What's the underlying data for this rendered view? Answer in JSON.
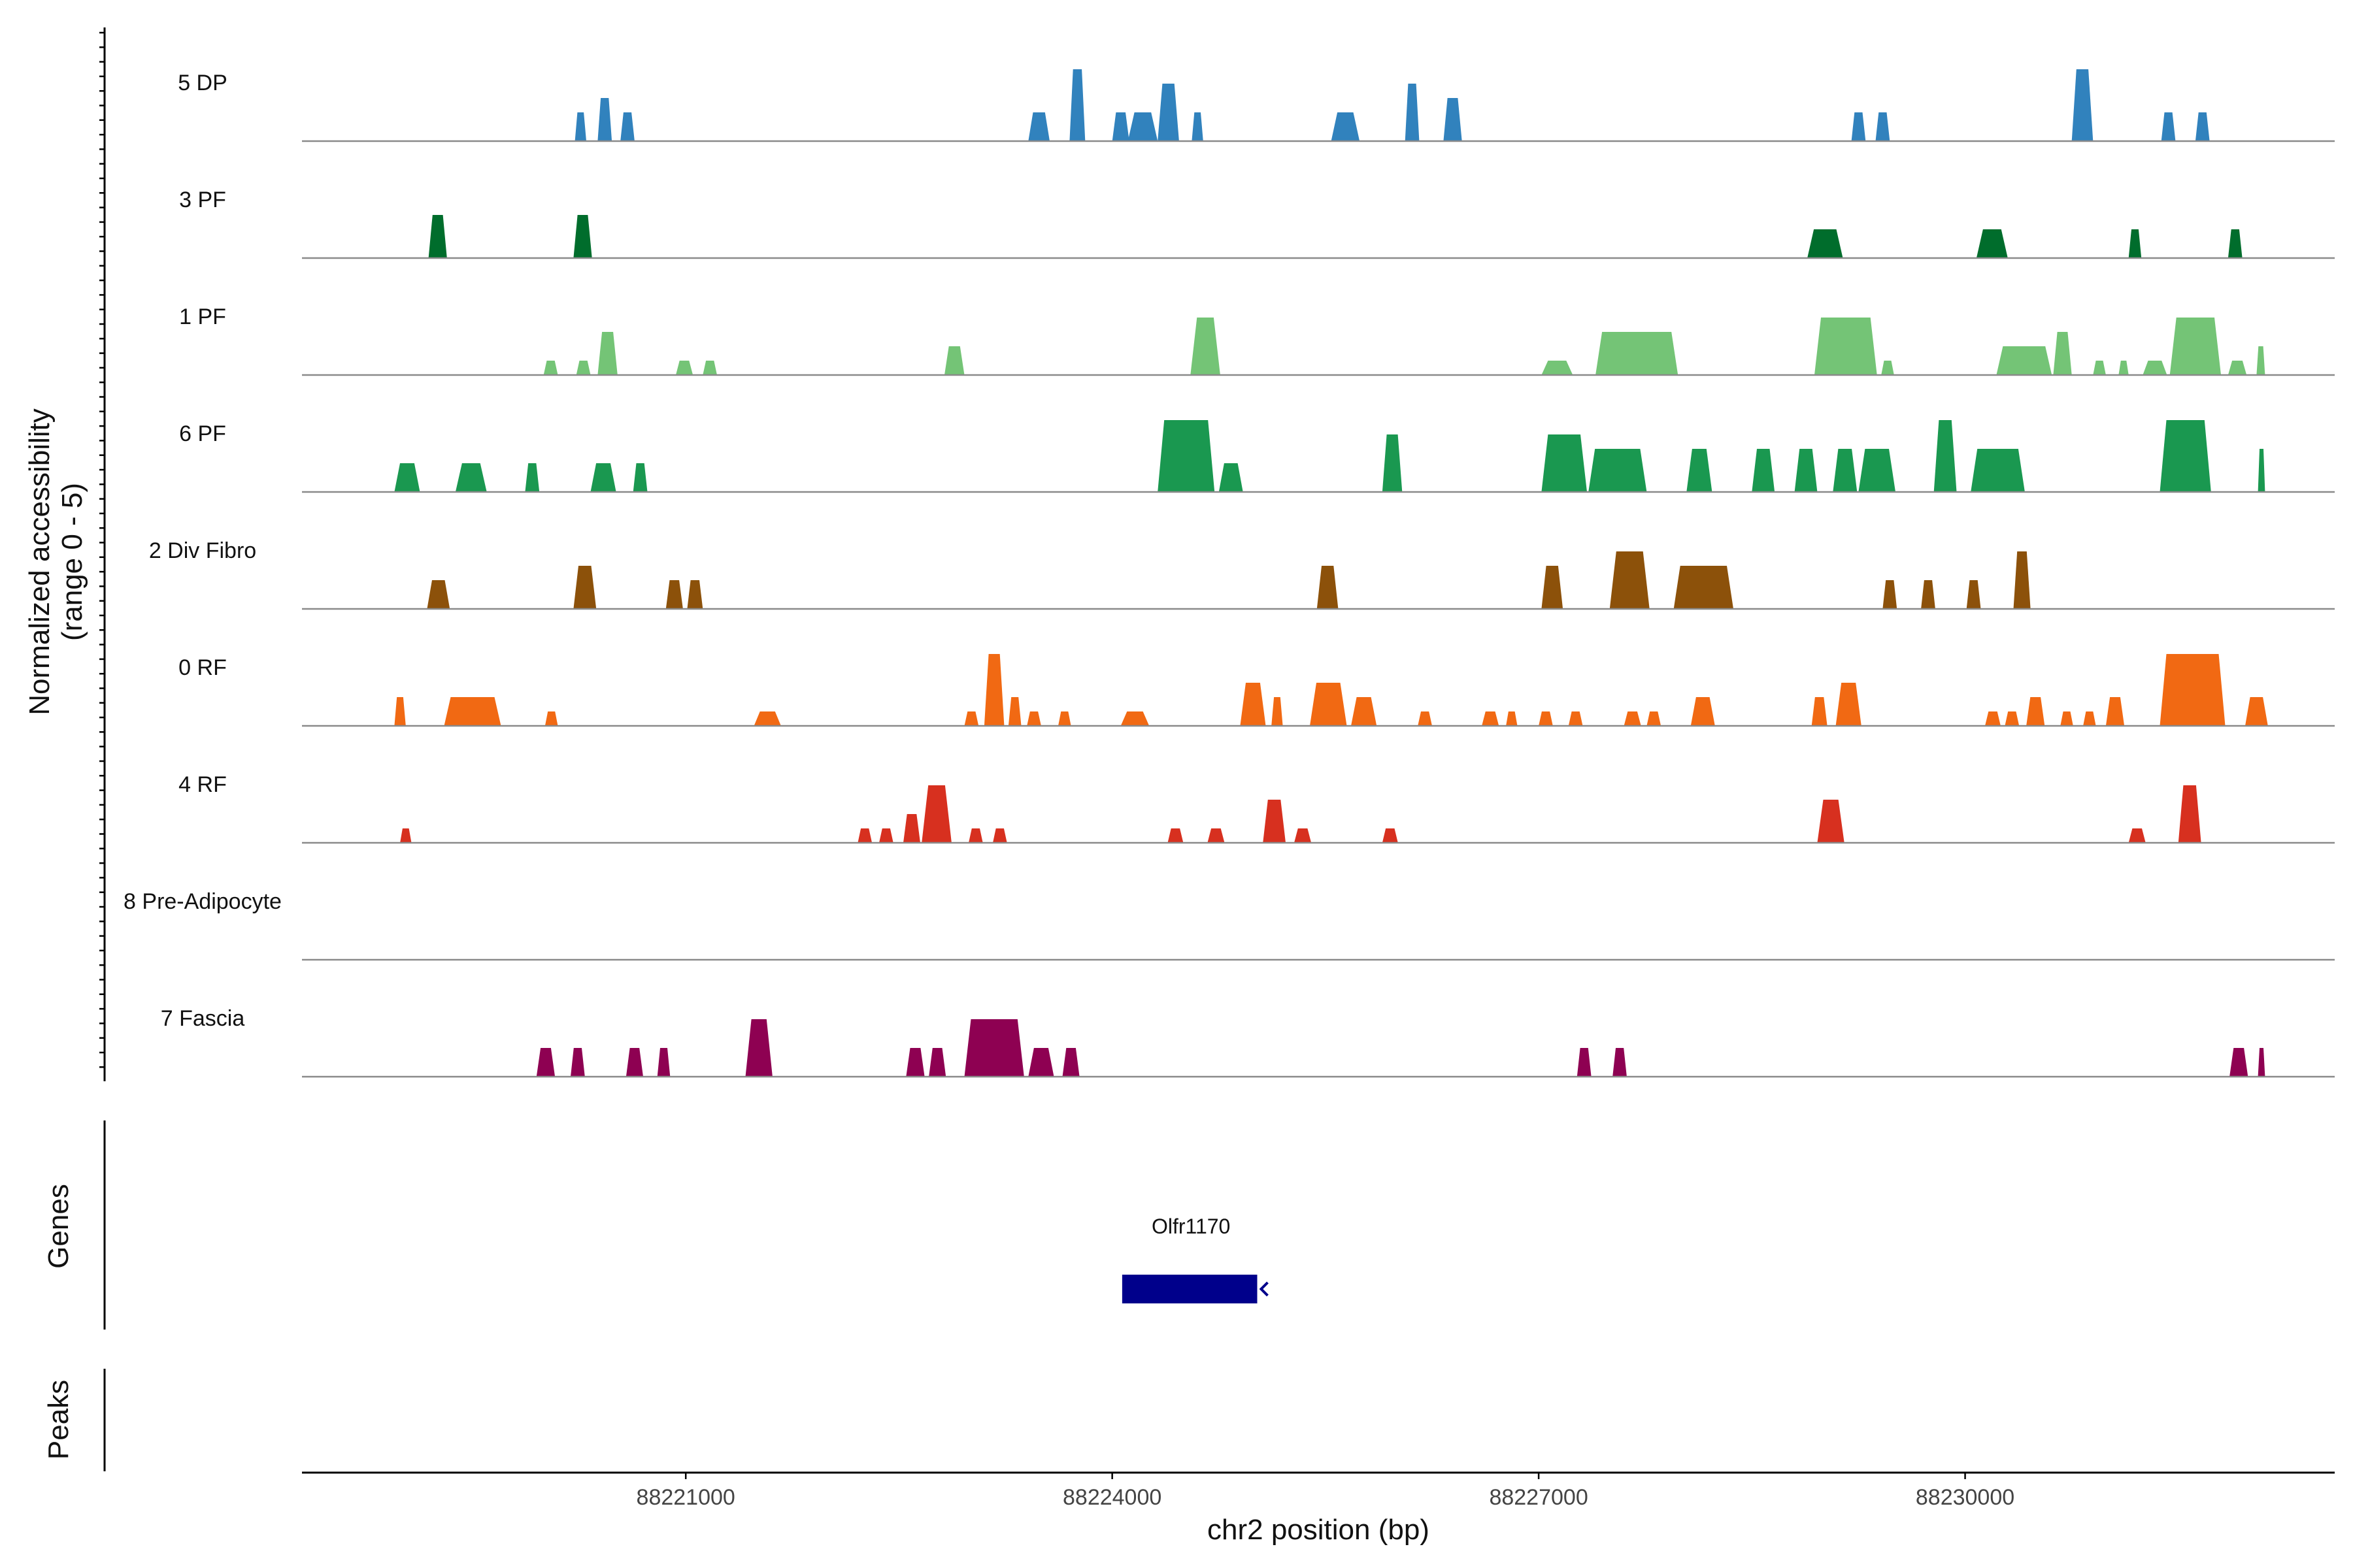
{
  "chart_data": {
    "type": "area",
    "title": "",
    "ylabel_line1": "Normalized accessibility",
    "ylabel_line2": "(range 0 - 5)",
    "xlabel": "chr2 position (bp)",
    "chromosome": "chr2",
    "xlim": [
      88218300,
      88232600
    ],
    "ylim": [
      0,
      5
    ],
    "xticks": [
      88221000,
      88224000,
      88227000,
      88230000
    ],
    "xtick_labels": [
      "88221000",
      "88224000",
      "88227000",
      "88230000"
    ],
    "grid": false,
    "tracks": [
      {
        "name": "5 DP",
        "color": "#3182bd",
        "peaks": [
          [
            88220220,
            88220300,
            2
          ],
          [
            88220380,
            88220480,
            3
          ],
          [
            88220540,
            88220640,
            2
          ],
          [
            88223410,
            88223560,
            2
          ],
          [
            88223700,
            88223810,
            5
          ],
          [
            88224000,
            88224120,
            2
          ],
          [
            88224110,
            88224320,
            2
          ],
          [
            88224320,
            88224470,
            4
          ],
          [
            88224560,
            88224640,
            2
          ],
          [
            88225540,
            88225740,
            2
          ],
          [
            88226060,
            88226160,
            4
          ],
          [
            88226330,
            88226460,
            3
          ],
          [
            88229200,
            88229300,
            2
          ],
          [
            88229370,
            88229470,
            2
          ],
          [
            88230750,
            88230900,
            5
          ],
          [
            88231380,
            88231480,
            2
          ],
          [
            88231620,
            88231720,
            2
          ]
        ]
      },
      {
        "name": "3 PF",
        "color": "#006d2c",
        "peaks": [
          [
            88219190,
            88219320,
            3
          ],
          [
            88220210,
            88220340,
            3
          ],
          [
            88228890,
            88229140,
            2
          ],
          [
            88230080,
            88230300,
            2
          ],
          [
            88231150,
            88231240,
            2
          ],
          [
            88231850,
            88231950,
            2
          ]
        ]
      },
      {
        "name": "1 PF",
        "color": "#74c476",
        "peaks": [
          [
            88220000,
            88220100,
            1
          ],
          [
            88220230,
            88220330,
            1
          ],
          [
            88220380,
            88220520,
            3
          ],
          [
            88220930,
            88221050,
            1
          ],
          [
            88221120,
            88221220,
            1
          ],
          [
            88222820,
            88222960,
            2
          ],
          [
            88224550,
            88224760,
            4
          ],
          [
            88227020,
            88227240,
            1
          ],
          [
            88227400,
            88227980,
            3
          ],
          [
            88228940,
            88229380,
            4
          ],
          [
            88229410,
            88229500,
            1
          ],
          [
            88230220,
            88230610,
            2
          ],
          [
            88230620,
            88230750,
            3
          ],
          [
            88230900,
            88230990,
            1
          ],
          [
            88231080,
            88231150,
            1
          ],
          [
            88231250,
            88231420,
            1
          ],
          [
            88231440,
            88231800,
            4
          ],
          [
            88231850,
            88231980,
            1
          ],
          [
            88232050,
            88232110,
            2
          ]
        ]
      },
      {
        "name": "6 PF",
        "color": "#1a9850",
        "peaks": [
          [
            88218950,
            88219130,
            2
          ],
          [
            88219380,
            88219600,
            2
          ],
          [
            88219870,
            88219970,
            2
          ],
          [
            88220330,
            88220510,
            2
          ],
          [
            88220630,
            88220730,
            2
          ],
          [
            88224320,
            88224720,
            5
          ],
          [
            88224750,
            88224920,
            2
          ],
          [
            88225900,
            88226040,
            4
          ],
          [
            88227020,
            88227340,
            4
          ],
          [
            88227350,
            88227760,
            3
          ],
          [
            88228040,
            88228220,
            3
          ],
          [
            88228500,
            88228660,
            3
          ],
          [
            88228800,
            88228960,
            3
          ],
          [
            88229070,
            88229240,
            3
          ],
          [
            88229250,
            88229510,
            3
          ],
          [
            88229780,
            88229940,
            5
          ],
          [
            88230040,
            88230420,
            3
          ],
          [
            88231370,
            88231730,
            5
          ],
          [
            88232060,
            88232110,
            3
          ]
        ]
      },
      {
        "name": "2 Div Fibro",
        "color": "#8c510a",
        "peaks": [
          [
            88219180,
            88219340,
            2
          ],
          [
            88220210,
            88220370,
            3
          ],
          [
            88220860,
            88220980,
            2
          ],
          [
            88221010,
            88221120,
            2
          ],
          [
            88225440,
            88225590,
            3
          ],
          [
            88227020,
            88227170,
            3
          ],
          [
            88227500,
            88227780,
            4
          ],
          [
            88227950,
            88228370,
            3
          ],
          [
            88229420,
            88229520,
            2
          ],
          [
            88229690,
            88229790,
            2
          ],
          [
            88230010,
            88230110,
            2
          ],
          [
            88230340,
            88230460,
            4
          ]
        ]
      },
      {
        "name": "0 RF",
        "color": "#f16913",
        "peaks": [
          [
            88218950,
            88219030,
            2
          ],
          [
            88219300,
            88219700,
            2
          ],
          [
            88220010,
            88220100,
            1
          ],
          [
            88221480,
            88221670,
            1
          ],
          [
            88222960,
            88223060,
            1
          ],
          [
            88223100,
            88223240,
            5
          ],
          [
            88223270,
            88223360,
            2
          ],
          [
            88223400,
            88223500,
            1
          ],
          [
            88223620,
            88223710,
            1
          ],
          [
            88224060,
            88224260,
            1
          ],
          [
            88224900,
            88225080,
            3
          ],
          [
            88225120,
            88225200,
            2
          ],
          [
            88225390,
            88225650,
            3
          ],
          [
            88225680,
            88225860,
            2
          ],
          [
            88226150,
            88226250,
            1
          ],
          [
            88226600,
            88226720,
            1
          ],
          [
            88226770,
            88226850,
            1
          ],
          [
            88227000,
            88227100,
            1
          ],
          [
            88227210,
            88227310,
            1
          ],
          [
            88227600,
            88227720,
            1
          ],
          [
            88227760,
            88227860,
            1
          ],
          [
            88228070,
            88228240,
            2
          ],
          [
            88228920,
            88229030,
            2
          ],
          [
            88229090,
            88229270,
            3
          ],
          [
            88230140,
            88230250,
            1
          ],
          [
            88230280,
            88230380,
            1
          ],
          [
            88230430,
            88230560,
            2
          ],
          [
            88230670,
            88230760,
            1
          ],
          [
            88230830,
            88230920,
            1
          ],
          [
            88230990,
            88231120,
            2
          ],
          [
            88231370,
            88231830,
            5
          ],
          [
            88231970,
            88232130,
            2
          ]
        ]
      },
      {
        "name": "4 RF",
        "color": "#d7301f",
        "peaks": [
          [
            88218990,
            88219070,
            1
          ],
          [
            88222210,
            88222310,
            1
          ],
          [
            88222360,
            88222460,
            1
          ],
          [
            88222530,
            88222650,
            2
          ],
          [
            88222660,
            88222870,
            4
          ],
          [
            88222990,
            88223090,
            1
          ],
          [
            88223160,
            88223260,
            1
          ],
          [
            88224390,
            88224500,
            1
          ],
          [
            88224670,
            88224790,
            1
          ],
          [
            88225060,
            88225220,
            3
          ],
          [
            88225280,
            88225400,
            1
          ],
          [
            88225900,
            88226010,
            1
          ],
          [
            88228960,
            88229150,
            3
          ],
          [
            88231150,
            88231270,
            1
          ],
          [
            88231500,
            88231660,
            4
          ]
        ]
      },
      {
        "name": "8 Pre-Adipocyte",
        "color": "#b2182b",
        "peaks": []
      },
      {
        "name": "7 Fascia",
        "color": "#8e0152",
        "peaks": [
          [
            88219950,
            88220080,
            2
          ],
          [
            88220190,
            88220290,
            2
          ],
          [
            88220580,
            88220700,
            2
          ],
          [
            88220800,
            88220890,
            2
          ],
          [
            88221420,
            88221610,
            4
          ],
          [
            88222550,
            88222680,
            2
          ],
          [
            88222710,
            88222830,
            2
          ],
          [
            88222960,
            88223380,
            4
          ],
          [
            88223410,
            88223590,
            2
          ],
          [
            88223650,
            88223770,
            2
          ],
          [
            88227270,
            88227370,
            2
          ],
          [
            88227520,
            88227620,
            2
          ],
          [
            88231860,
            88231990,
            2
          ],
          [
            88232060,
            88232110,
            2
          ]
        ]
      }
    ],
    "genes": [
      {
        "name": "Olfr1170",
        "start": 88224070,
        "end": 88225020,
        "strand": "-"
      }
    ]
  },
  "panels": {
    "genes_label": "Genes",
    "peaks_label": "Peaks"
  }
}
